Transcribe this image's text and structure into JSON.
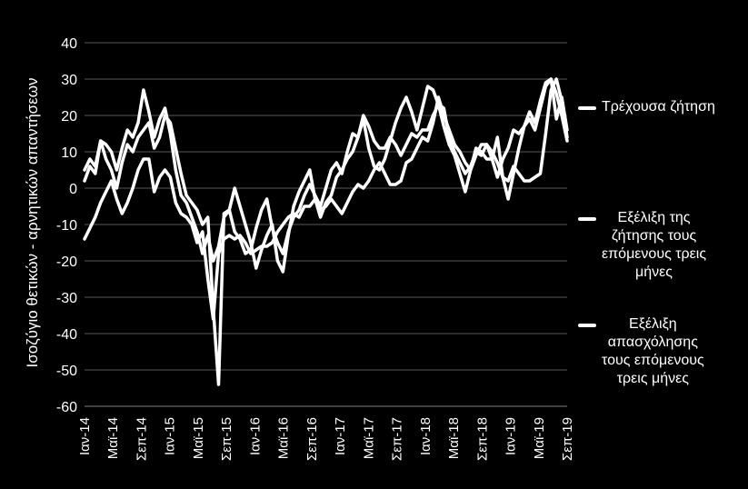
{
  "chart_data": {
    "type": "line",
    "title": "",
    "xlabel": "",
    "ylabel": "Ισοζύγιο θετικών - αρνητικών απαντήσεων",
    "ylim": [
      -60,
      40
    ],
    "yticks": [
      40,
      30,
      20,
      10,
      0,
      -10,
      -20,
      -30,
      -40,
      -50,
      -60
    ],
    "xtick_labels": [
      "Ιαν-14",
      "Μαϊ-14",
      "Σεπ-14",
      "Ιαν-15",
      "Μαϊ-15",
      "Σεπ-15",
      "Ιαν-16",
      "Μαϊ-16",
      "Σεπ-16",
      "Ιαν-17",
      "Μαϊ-17",
      "Σεπ-17",
      "Ιαν-18",
      "Μαϊ-18",
      "Σεπ-18",
      "Ιαν-19",
      "Μαϊ-19",
      "Σεπ-19"
    ],
    "line_color": "#ffffff",
    "series": [
      {
        "name": "Τρέχουσα ζήτηση",
        "values": [
          -14,
          -11,
          -8,
          -4,
          -1,
          2,
          -3,
          -7,
          -4,
          0,
          5,
          8,
          8,
          -1,
          3,
          5,
          3,
          -4,
          -7,
          -8,
          -10,
          -15,
          -12,
          -25,
          -36,
          -18,
          -14,
          -13,
          -14,
          -13,
          -15,
          -18,
          -17,
          -16,
          -16,
          -15,
          -12,
          -10,
          -8,
          -7,
          -8,
          -5,
          -5,
          -3,
          -6,
          -5,
          -3,
          -5,
          -7,
          -4,
          -1,
          1,
          0,
          2,
          5,
          7,
          4,
          1,
          1,
          2,
          7,
          8,
          11,
          14,
          13,
          18,
          25,
          20,
          16,
          12,
          10,
          7,
          5,
          9,
          12,
          12,
          10,
          7,
          3,
          2,
          6,
          4,
          2,
          2,
          3,
          4,
          15,
          27,
          30,
          24,
          14
        ]
      },
      {
        "name": "Εξέλιξη της ζήτησης τους επόμενους τρεις μήνες",
        "values": [
          5,
          8,
          6,
          13,
          12,
          10,
          5,
          11,
          16,
          14,
          18,
          27,
          21,
          14,
          19,
          22,
          15,
          5,
          -2,
          -4,
          -8,
          -12,
          -18,
          -13,
          -20,
          -16,
          -8,
          -6,
          -12,
          -14,
          -18,
          -17,
          -11,
          -6,
          -3,
          -11,
          -15,
          -18,
          -12,
          -8,
          -6,
          -2,
          1,
          -2,
          -5,
          0,
          5,
          7,
          4,
          10,
          15,
          14,
          20,
          17,
          13,
          11,
          11,
          14,
          12,
          9,
          12,
          15,
          14,
          16,
          16,
          20,
          23,
          22,
          14,
          10,
          7,
          4,
          6,
          10,
          9,
          12,
          8,
          3,
          8,
          11,
          16,
          15,
          17,
          21,
          18,
          24,
          29,
          30,
          19,
          25,
          16
        ]
      },
      {
        "name": "Εξέλιξη απασχόλησης τους επόμενους τρεις μήνες",
        "values": [
          2,
          6,
          4,
          13,
          8,
          5,
          0,
          7,
          12,
          10,
          14,
          16,
          18,
          11,
          14,
          20,
          18,
          11,
          4,
          -2,
          -4,
          -6,
          -10,
          -8,
          -33,
          -54,
          -7,
          -6,
          0,
          -5,
          -10,
          -15,
          -22,
          -17,
          -13,
          -10,
          -20,
          -23,
          -13,
          -5,
          -1,
          2,
          5,
          -3,
          -8,
          -4,
          -2,
          3,
          5,
          8,
          10,
          14,
          19,
          11,
          6,
          5,
          8,
          13,
          18,
          22,
          25,
          21,
          16,
          22,
          28,
          27,
          23,
          17,
          12,
          9,
          4,
          -1,
          5,
          11,
          10,
          8,
          8,
          14,
          3,
          -3,
          4,
          11,
          17,
          19,
          16,
          22,
          28,
          30,
          26,
          20,
          13
        ]
      }
    ],
    "legend": {
      "position": "right",
      "entries": [
        "Τρέχουσα ζήτηση",
        "Εξέλιξη της ζήτησης τους επόμενους τρεις μήνες",
        "Εξέλιξη απασχόλησης τους επόμενους τρεις μήνες"
      ]
    }
  },
  "legend_lines": {
    "item1": [
      "Τρέχουσα ζήτηση"
    ],
    "item2": [
      "Εξέλιξη της",
      "ζήτησης τους",
      "επόμενους τρεις",
      "μήνες"
    ],
    "item3": [
      "Εξέλιξη",
      "απασχόλησης",
      "τους επόμενους",
      "τρεις μήνες"
    ]
  }
}
